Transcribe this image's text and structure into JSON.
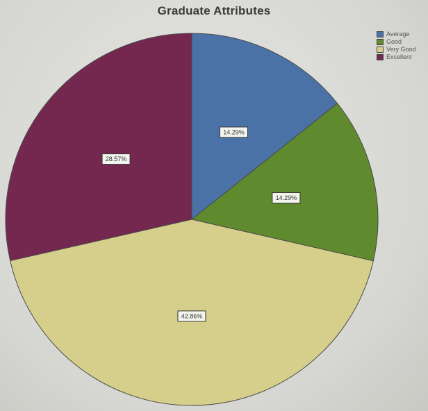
{
  "chart_data": {
    "type": "pie",
    "title": "Graduate Attributes",
    "categories": [
      "Average",
      "Good",
      "Very Good",
      "Excellent"
    ],
    "values": [
      14.29,
      14.29,
      42.86,
      28.57
    ],
    "labels": [
      "14.29%",
      "14.29%",
      "42.86%",
      "28.57%"
    ],
    "colors": [
      "#4a72a6",
      "#5f8a2e",
      "#d6cf8c",
      "#74284f"
    ],
    "legend": "top-right",
    "start_angle_deg": 0,
    "direction": "clockwise"
  }
}
